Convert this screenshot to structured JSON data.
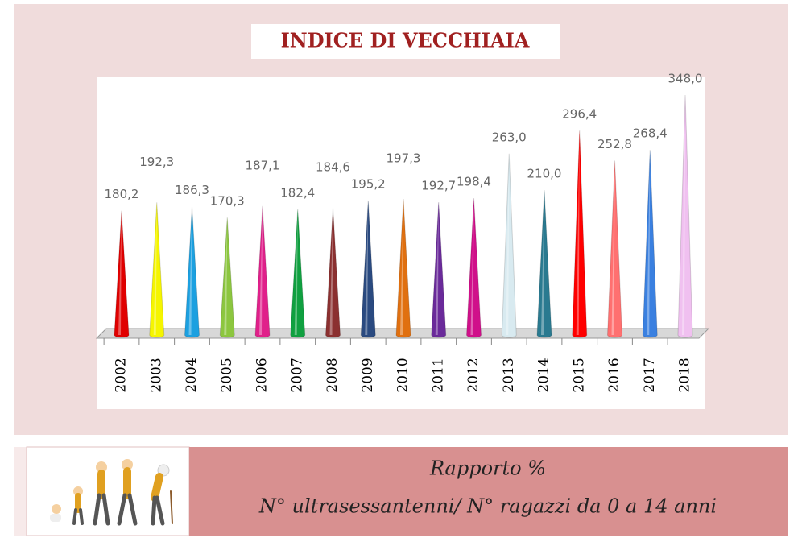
{
  "chart_data": {
    "type": "bar",
    "title": "INDICE DI VECCHIAIA",
    "categories": [
      "2002",
      "2003",
      "2004",
      "2005",
      "2006",
      "2007",
      "2008",
      "2009",
      "2010",
      "2011",
      "2012",
      "2013",
      "2014",
      "2015",
      "2016",
      "2017",
      "2018"
    ],
    "values": [
      180.2,
      192.3,
      186.3,
      170.3,
      187.1,
      182.4,
      184.6,
      195.2,
      197.3,
      192.7,
      198.4,
      263.0,
      210.0,
      296.4,
      252.8,
      268.4,
      348.0
    ],
    "value_labels": [
      "180,2",
      "192,3",
      "186,3",
      "170,3",
      "187,1",
      "182,4",
      "184,6",
      "195,2",
      "197,3",
      "192,7",
      "198,4",
      "263,0",
      "210,0",
      "296,4",
      "252,8",
      "268,4",
      "348,0"
    ],
    "colors": [
      "#e00000",
      "#f5f500",
      "#1ca0e0",
      "#8cc63f",
      "#e0208a",
      "#10a040",
      "#8b3030",
      "#2a4a80",
      "#e07010",
      "#6a2a9a",
      "#d0108a",
      "#d8eaf0",
      "#2a7a90",
      "#ff0000",
      "#ff7070",
      "#3a80e0",
      "#f0c0f0"
    ]
  },
  "footer": {
    "line1": "Rapporto %",
    "line2": "N° ultrasessantenni/ N° ragazzi da 0 a 14 anni"
  }
}
